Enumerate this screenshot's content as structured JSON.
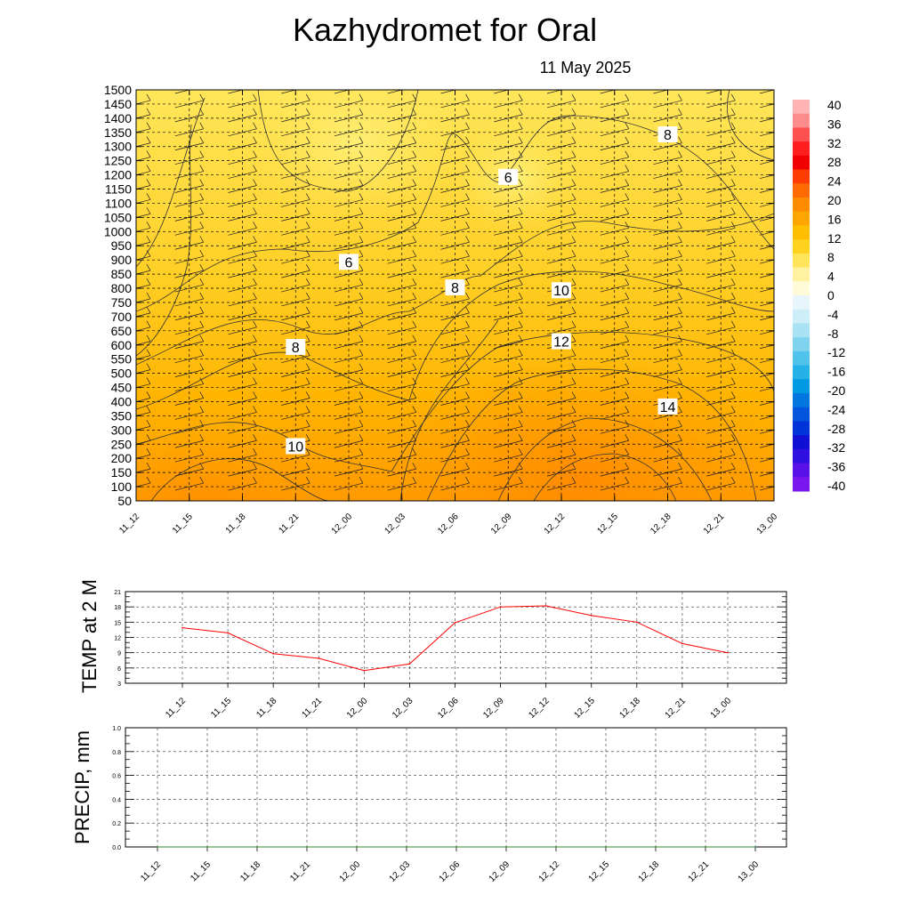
{
  "title": "Kazhydromet  for Oral",
  "date": "11 May 2025",
  "time_labels": [
    "11_12",
    "11_15",
    "11_18",
    "11_21",
    "12_00",
    "12_03",
    "12_06",
    "12_09",
    "12_12",
    "12_15",
    "12_18",
    "12_21",
    "13_00"
  ],
  "chart_data": [
    {
      "type": "heatmap",
      "name": "temperature-height-cross-section",
      "y_levels": [
        50,
        100,
        150,
        200,
        250,
        300,
        350,
        400,
        450,
        500,
        550,
        600,
        650,
        700,
        750,
        800,
        850,
        900,
        950,
        1000,
        1050,
        1100,
        1150,
        1200,
        1250,
        1300,
        1350,
        1400,
        1450,
        1500
      ],
      "ylim": [
        50,
        1500
      ],
      "contour_labels": [
        {
          "text": "6",
          "time": "12_00",
          "height": 890
        },
        {
          "text": "6",
          "time": "12_09",
          "height": 1190
        },
        {
          "text": "8",
          "time": "11_21",
          "height": 590
        },
        {
          "text": "8",
          "time": "12_06",
          "height": 800
        },
        {
          "text": "8",
          "time": "12_18",
          "height": 1340
        },
        {
          "text": "10",
          "time": "11_21",
          "height": 240
        },
        {
          "text": "10",
          "time": "12_12",
          "height": 790
        },
        {
          "text": "12",
          "time": "12_12",
          "height": 610
        },
        {
          "text": "14",
          "time": "12_18",
          "height": 380
        }
      ],
      "colorbar": {
        "ticks": [
          40,
          36,
          32,
          28,
          24,
          20,
          16,
          12,
          8,
          4,
          0,
          -4,
          -8,
          -12,
          -16,
          -20,
          -24,
          -28,
          -32,
          -36,
          -40
        ]
      },
      "grid": true
    },
    {
      "type": "line",
      "ylabel": "TEMP at 2 M",
      "categories": [
        "11_12",
        "11_15",
        "11_18",
        "11_21",
        "12_00",
        "12_03",
        "12_06",
        "12_09",
        "12_12",
        "12_15",
        "12_18",
        "12_21",
        "13_00"
      ],
      "values": [
        13.9,
        12.9,
        8.8,
        7.9,
        5.5,
        6.8,
        14.9,
        18.0,
        18.2,
        16.3,
        15.0,
        10.8,
        9.0
      ],
      "yticks": [
        3,
        6,
        9,
        12,
        15,
        18,
        21
      ],
      "ylim": [
        3,
        21
      ],
      "line_color": "#ff0000",
      "grid": true
    },
    {
      "type": "line",
      "ylabel": "PRECIP, mm",
      "categories": [
        "11_12",
        "11_15",
        "11_18",
        "11_21",
        "12_00",
        "12_03",
        "12_06",
        "12_09",
        "12_12",
        "12_15",
        "12_18",
        "12_21",
        "13_00"
      ],
      "values": [
        0,
        0,
        0,
        0,
        0,
        0,
        0,
        0,
        0,
        0,
        0,
        0,
        0
      ],
      "yticks": [
        "0.0",
        "0.2",
        "0.4",
        "0.6",
        "0.8",
        "1.0"
      ],
      "ylim": [
        0,
        1
      ],
      "line_color": "#2e8b2e",
      "grid": true
    }
  ]
}
